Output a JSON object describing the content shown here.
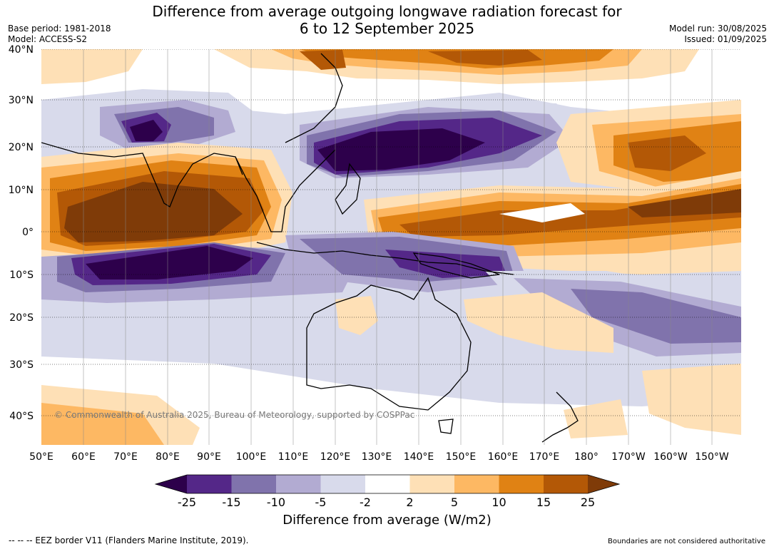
{
  "title": {
    "line1": "Difference from average outgoing longwave radiation forecast for",
    "line2": "6 to 12 September 2025"
  },
  "meta": {
    "base_period": "Base period: 1981-2018",
    "model": "Model: ACCESS-S2",
    "model_run": "Model run: 30/08/2025",
    "issued": "Issued: 01/09/2025"
  },
  "map": {
    "copyright": "© Commonwealth of Australia 2025, Bureau of Meteorology, supported by COSPPac",
    "lat_labels": [
      "40°N",
      "30°N",
      "20°N",
      "10°N",
      "0°",
      "10°S",
      "20°S",
      "30°S",
      "40°S"
    ],
    "lon_labels": [
      "50°E",
      "60°E",
      "70°E",
      "80°E",
      "90°E",
      "100°E",
      "110°E",
      "120°E",
      "130°E",
      "140°E",
      "150°E",
      "160°E",
      "170°E",
      "180°",
      "170°W",
      "160°W",
      "150°W"
    ]
  },
  "colorbar": {
    "title": "Difference from average (W/m2)",
    "tick_labels": [
      "-25",
      "-15",
      "-10",
      "-5",
      "-2",
      "2",
      "5",
      "10",
      "15",
      "25"
    ],
    "colors": [
      "#2d004b",
      "#542788",
      "#8073ac",
      "#b2abd2",
      "#d8daeb",
      "#ffffff",
      "#fee0b6",
      "#fdb863",
      "#e08214",
      "#b35806",
      "#7f3b08"
    ]
  },
  "footer": {
    "eez_note": "--  --  -- EEZ border V11 (Flanders Marine Institute, 2019).",
    "disclaimer": "Boundaries are not considered authoritative"
  }
}
